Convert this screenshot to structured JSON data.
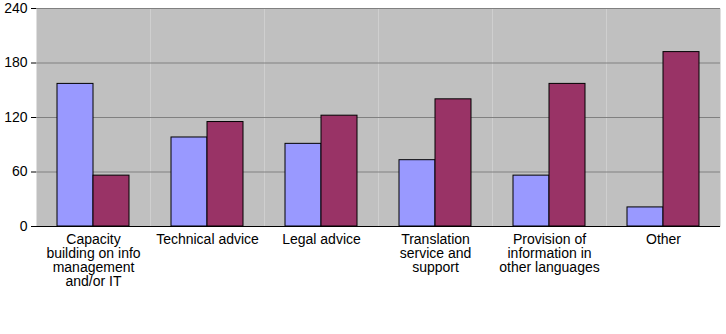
{
  "chart_data": {
    "type": "bar",
    "categories": [
      "Capacity building on info management and/or IT",
      "Technical advice",
      "Legal advice",
      "Translation service and support",
      "Provision of information in other languages",
      "Other"
    ],
    "series": [
      {
        "color": "#9999ff",
        "values": [
          157,
          98,
          91,
          73,
          56,
          21
        ]
      },
      {
        "color": "#993366",
        "values": [
          56,
          115,
          122,
          140,
          157,
          192
        ]
      }
    ],
    "ylim": [
      0,
      240
    ],
    "yticks": [
      0,
      60,
      120,
      180,
      240
    ],
    "grid": true
  }
}
